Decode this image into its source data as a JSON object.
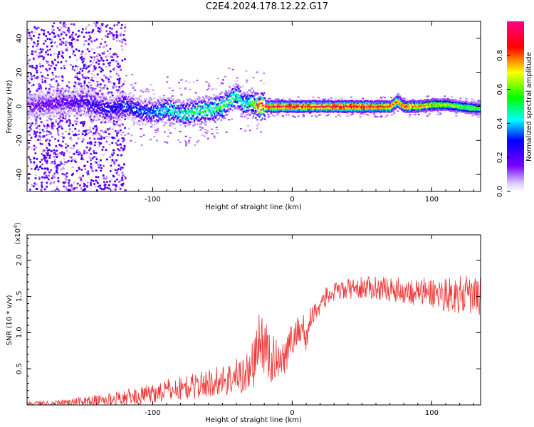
{
  "figure": {
    "title": "C2E4.2024.178.12.22.G17"
  },
  "chart_data": [
    {
      "type": "heatmap",
      "title": "C2E4.2024.178.12.22.G17",
      "xlabel": "Height of straight line (km)",
      "ylabel": "Frequency (Hz)",
      "xlim": [
        -190,
        135
      ],
      "ylim": [
        -50,
        50
      ],
      "xticks": [
        -100,
        0,
        100
      ],
      "yticks": [
        -40,
        -20,
        0,
        20,
        40
      ],
      "colorbar": {
        "label": "Normalized spectral amplitude",
        "range": [
          0.0,
          1.0
        ],
        "ticks": [
          "0.0",
          "0.2",
          "0.4",
          "0.6",
          "0.8"
        ],
        "colors": [
          "#ffffff",
          "#6a00ff",
          "#0000ff",
          "#00ffff",
          "#00ff00",
          "#ffff00",
          "#ff0000",
          "#ff0080"
        ]
      },
      "ridge": {
        "x": [
          -190,
          -170,
          -150,
          -140,
          -130,
          -120,
          -110,
          -100,
          -90,
          -80,
          -70,
          -60,
          -50,
          -45,
          -40,
          -35,
          -30,
          -25,
          -20,
          -10,
          0,
          10,
          20,
          30,
          40,
          50,
          60,
          70,
          75,
          80,
          90,
          100,
          110,
          120,
          130,
          135
        ],
        "frequency": [
          0,
          2,
          3,
          0,
          -2,
          1,
          -3,
          -3,
          -2,
          -4,
          -3,
          -2,
          0,
          4,
          6,
          1,
          3,
          0,
          0,
          0,
          0,
          0,
          0,
          0,
          0,
          0,
          0,
          0,
          3,
          0,
          0,
          1,
          1,
          0,
          -1,
          -1
        ],
        "amplitude": [
          0.15,
          0.2,
          0.25,
          0.3,
          0.3,
          0.35,
          0.35,
          0.4,
          0.45,
          0.5,
          0.55,
          0.55,
          0.6,
          0.55,
          0.5,
          0.5,
          0.55,
          0.95,
          0.95,
          0.95,
          0.95,
          0.95,
          0.95,
          0.95,
          0.95,
          0.95,
          0.9,
          0.9,
          0.85,
          0.9,
          0.8,
          0.75,
          0.7,
          0.65,
          0.6,
          0.6
        ]
      }
    },
    {
      "type": "line",
      "title": "",
      "xlabel": "Height of straight line (km)",
      "ylabel": "SNR (10 * v/v)",
      "y_scale_note": "(x10",
      "y_scale_exp": "4",
      "xlim": [
        -190,
        135
      ],
      "ylim": [
        0,
        23500
      ],
      "xticks": [
        -100,
        0,
        100
      ],
      "yticks": [
        5000,
        10000,
        15000,
        20000
      ],
      "ytick_labels": [
        "0.5",
        "1.0",
        "1.5",
        "2.0"
      ],
      "color": "#ee3333",
      "series": [
        {
          "x": [
            -190,
            -170,
            -150,
            -130,
            -110,
            -100,
            -90,
            -80,
            -70,
            -60,
            -50,
            -45,
            -40,
            -35,
            -30,
            -25,
            -22,
            -20,
            -18,
            -15,
            -12,
            -10,
            -5,
            0,
            5,
            8,
            10,
            12,
            15,
            20,
            25,
            30,
            40,
            50,
            60,
            70,
            80,
            90,
            100,
            110,
            120,
            130,
            135
          ],
          "values": [
            200,
            300,
            500,
            800,
            1200,
            1600,
            2000,
            2300,
            2600,
            3000,
            3400,
            3600,
            3900,
            4200,
            4800,
            7500,
            9000,
            8500,
            7000,
            6000,
            6500,
            6500,
            7000,
            9000,
            10500,
            11000,
            8000,
            11500,
            12500,
            14000,
            15000,
            15500,
            16000,
            16200,
            16200,
            16000,
            15800,
            15600,
            15500,
            15300,
            15200,
            15000,
            15000
          ],
          "spread": [
            300,
            400,
            600,
            900,
            1200,
            1400,
            1600,
            1700,
            1800,
            2000,
            2200,
            2400,
            2600,
            2800,
            3000,
            4500,
            4500,
            4500,
            4000,
            3500,
            3000,
            2800,
            2600,
            2400,
            2200,
            2000,
            2000,
            1800,
            1600,
            1500,
            1400,
            1400,
            1400,
            1500,
            1600,
            1700,
            1800,
            2000,
            2200,
            2400,
            2600,
            2800,
            2800
          ]
        }
      ]
    }
  ]
}
